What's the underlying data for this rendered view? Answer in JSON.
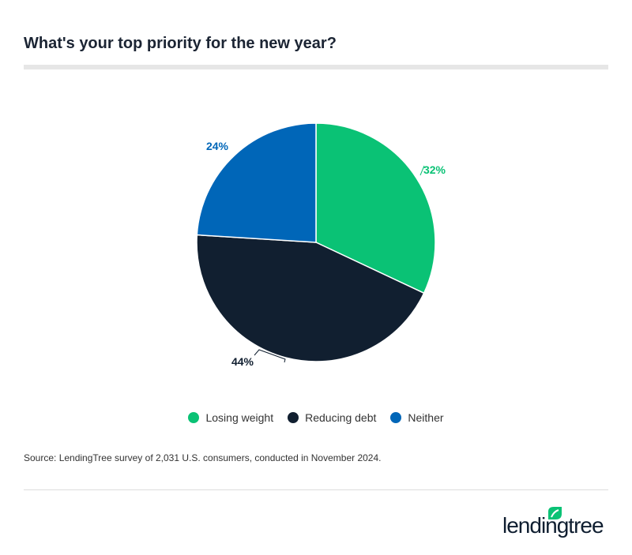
{
  "title": "What's your top priority for the new year?",
  "chart_data": {
    "type": "pie",
    "title": "What's your top priority for the new year?",
    "slices": [
      {
        "label": "Losing weight",
        "value": 32,
        "display": "32%",
        "color": "#0ac275"
      },
      {
        "label": "Reducing debt",
        "value": 44,
        "display": "44%",
        "color": "#111f30"
      },
      {
        "label": "Neither",
        "value": 24,
        "display": "24%",
        "color": "#0066b8"
      }
    ],
    "start": "top",
    "direction": "clockwise",
    "legend_position": "bottom"
  },
  "source": "Source: LendingTree survey of 2,031 U.S. consumers, conducted in November 2024.",
  "logo": {
    "text": "lendingtree",
    "icon": "leaf-icon",
    "color": "#0ac275"
  }
}
